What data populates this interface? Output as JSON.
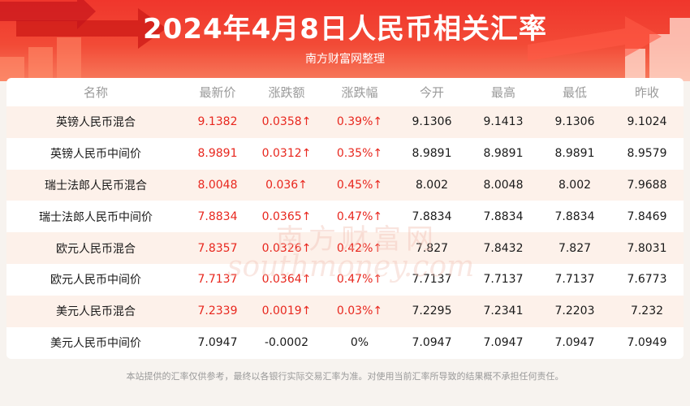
{
  "header": {
    "title": "2024年4月8日人民币相关汇率",
    "subtitle": "南方财富网整理"
  },
  "table": {
    "columns": [
      "名称",
      "最新价",
      "涨跌额",
      "涨跌幅",
      "今开",
      "最高",
      "最低",
      "昨收"
    ],
    "rows": [
      [
        "英镑人民币混合",
        "9.1382",
        "0.0358↑",
        "0.39%↑",
        "9.1306",
        "9.1413",
        "9.1306",
        "9.1024"
      ],
      [
        "英镑人民币中间价",
        "8.9891",
        "0.0312↑",
        "0.35%↑",
        "8.9891",
        "8.9891",
        "8.9891",
        "8.9579"
      ],
      [
        "瑞士法郎人民币混合",
        "8.0048",
        "0.036↑",
        "0.45%↑",
        "8.002",
        "8.0048",
        "8.002",
        "7.9688"
      ],
      [
        "瑞士法郎人民币中间价",
        "7.8834",
        "0.0365↑",
        "0.47%↑",
        "7.8834",
        "7.8834",
        "7.8834",
        "7.8469"
      ],
      [
        "欧元人民币混合",
        "7.8357",
        "0.0326↑",
        "0.42%↑",
        "7.827",
        "7.8432",
        "7.827",
        "7.8031"
      ],
      [
        "欧元人民币中间价",
        "7.7137",
        "0.0364↑",
        "0.47%↑",
        "7.7137",
        "7.7137",
        "7.7137",
        "7.6773"
      ],
      [
        "美元人民币混合",
        "7.2339",
        "0.0019↑",
        "0.03%↑",
        "7.2295",
        "7.2341",
        "7.2203",
        "7.232"
      ],
      [
        "美元人民币中间价",
        "7.0947",
        "-0.0002",
        "0%",
        "7.0947",
        "7.0947",
        "7.0947",
        "7.0949"
      ]
    ],
    "row_trend": [
      "up",
      "up",
      "up",
      "up",
      "up",
      "up",
      "up",
      "flat"
    ]
  },
  "watermark": {
    "brand_cn": "南方财富网",
    "brand_en": "southmoney.com"
  },
  "footer": {
    "disclaimer": "本站提供的汇率仅供参考，最终以各银行实际交易汇率为准。对使用当前汇率所导致的结果概不承担任何责任。"
  },
  "colors": {
    "header_red": "#f0362c",
    "up_red": "#e8271e",
    "stripe": "#fdf1ea"
  }
}
